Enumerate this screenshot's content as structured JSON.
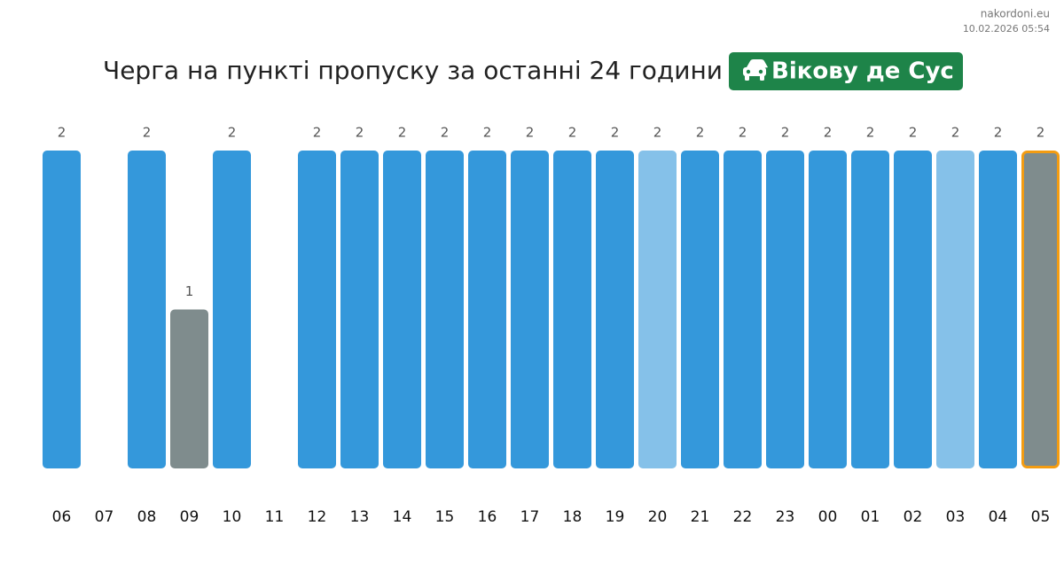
{
  "chart_data": {
    "type": "bar",
    "site": "nakordoni.eu",
    "timestamp": "10.02.2026 05:54",
    "title": "Черга на пункті пропуску за останні 24 години",
    "checkpoint": "Вікову де Сус",
    "categories": [
      "06",
      "07",
      "08",
      "09",
      "10",
      "11",
      "12",
      "13",
      "14",
      "15",
      "16",
      "17",
      "18",
      "19",
      "20",
      "21",
      "22",
      "23",
      "00",
      "01",
      "02",
      "03",
      "04",
      "05"
    ],
    "values": [
      2,
      null,
      2,
      1,
      2,
      null,
      2,
      2,
      2,
      2,
      2,
      2,
      2,
      2,
      2,
      2,
      2,
      2,
      2,
      2,
      2,
      2,
      2,
      2
    ],
    "colors": [
      "#3498db",
      "#3498db",
      "#3498db",
      "#7f8c8d",
      "#3498db",
      "#3498db",
      "#3498db",
      "#3498db",
      "#3498db",
      "#3498db",
      "#3498db",
      "#3498db",
      "#3498db",
      "#3498db",
      "#85c1e9",
      "#3498db",
      "#3498db",
      "#3498db",
      "#3498db",
      "#3498db",
      "#3498db",
      "#85c1e9",
      "#3498db",
      "#7f8c8d"
    ],
    "highlight": "05",
    "highlight_color": "#f39c12",
    "ylim": [
      0,
      2
    ]
  }
}
